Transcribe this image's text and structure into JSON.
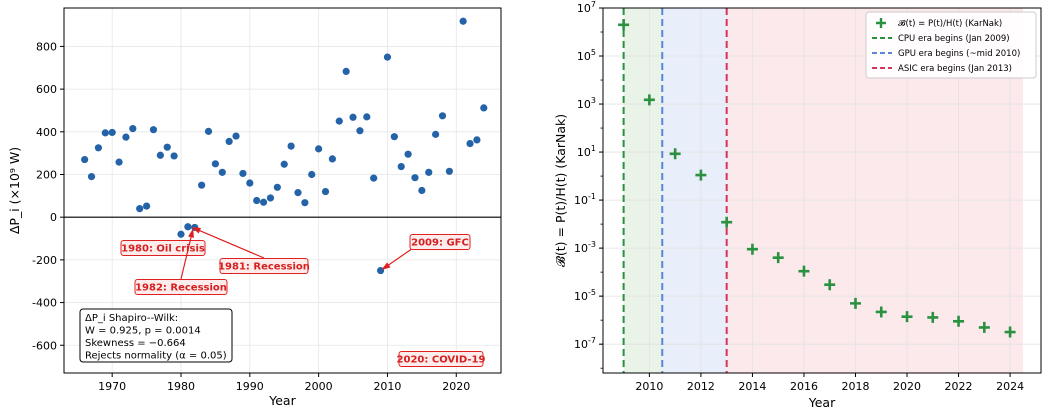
{
  "chart_data": [
    {
      "type": "scatter",
      "xlabel": "Year",
      "ylabel": "ΔP_i (×10⁹ W)",
      "xlim": [
        1963,
        2026.5
      ],
      "ylim": [
        -730,
        980
      ],
      "xticks": [
        1970,
        1980,
        1990,
        2000,
        2010,
        2020
      ],
      "yticks": [
        -600,
        -400,
        -200,
        0,
        200,
        400,
        600,
        800
      ],
      "grid": true,
      "marker_color": "#2463a8",
      "zero_line": true,
      "points": [
        [
          1966,
          270
        ],
        [
          1967,
          190
        ],
        [
          1968,
          325
        ],
        [
          1969,
          395
        ],
        [
          1970,
          397
        ],
        [
          1971,
          258
        ],
        [
          1972,
          375
        ],
        [
          1973,
          415
        ],
        [
          1974,
          40
        ],
        [
          1975,
          52
        ],
        [
          1976,
          410
        ],
        [
          1977,
          290
        ],
        [
          1978,
          328
        ],
        [
          1979,
          287
        ],
        [
          1980,
          -80
        ],
        [
          1981,
          -45
        ],
        [
          1982,
          -48
        ],
        [
          1983,
          150
        ],
        [
          1984,
          402
        ],
        [
          1985,
          250
        ],
        [
          1986,
          210
        ],
        [
          1987,
          355
        ],
        [
          1988,
          380
        ],
        [
          1989,
          205
        ],
        [
          1990,
          160
        ],
        [
          1991,
          78
        ],
        [
          1992,
          70
        ],
        [
          1993,
          90
        ],
        [
          1994,
          140
        ],
        [
          1995,
          248
        ],
        [
          1996,
          333
        ],
        [
          1997,
          115
        ],
        [
          1998,
          68
        ],
        [
          1999,
          200
        ],
        [
          2000,
          320
        ],
        [
          2001,
          120
        ],
        [
          2002,
          273
        ],
        [
          2003,
          450
        ],
        [
          2004,
          683
        ],
        [
          2005,
          468
        ],
        [
          2006,
          405
        ],
        [
          2007,
          470
        ],
        [
          2008,
          183
        ],
        [
          2009,
          -250
        ],
        [
          2010,
          750
        ],
        [
          2011,
          377
        ],
        [
          2012,
          237
        ],
        [
          2013,
          295
        ],
        [
          2014,
          185
        ],
        [
          2015,
          125
        ],
        [
          2016,
          210
        ],
        [
          2017,
          388
        ],
        [
          2018,
          475
        ],
        [
          2019,
          215
        ],
        [
          2020,
          -650
        ],
        [
          2021,
          918
        ],
        [
          2022,
          345
        ],
        [
          2023,
          362
        ],
        [
          2024,
          512
        ]
      ],
      "annotations": [
        {
          "text": "1980: Oil crisis",
          "point": [
            1980,
            -80
          ],
          "arrow": false
        },
        {
          "text": "1981: Recession",
          "point": [
            1981.4,
            -45
          ],
          "arrow": true
        },
        {
          "text": "1982: Recession",
          "point": [
            1981.8,
            -48
          ],
          "arrow": true
        },
        {
          "text": "2009: GFC",
          "point": [
            2009,
            -250
          ],
          "arrow": true
        },
        {
          "text": "2020: COVID-19",
          "point": [
            2020,
            -650
          ],
          "arrow": false
        }
      ],
      "stats_box": [
        "ΔP_i  Shapiro--Wilk:",
        "W = 0.925,  p = 0.0014",
        "Skewness = −0.664",
        "Rejects normality (α = 0.05)"
      ]
    },
    {
      "type": "scatter",
      "scale_y": "log",
      "xlabel": "Year",
      "ylabel": "𝓑(t) = P(t)/H(t) (KarNak)",
      "xlim": [
        2008.2,
        2025.2
      ],
      "ylim_exp": [
        -8.2,
        7
      ],
      "xticks": [
        2010,
        2012,
        2014,
        2016,
        2018,
        2020,
        2022,
        2024
      ],
      "ytick_exps": [
        -7,
        -5,
        -3,
        -1,
        1,
        3,
        5,
        7
      ],
      "grid": true,
      "marker": "plus",
      "marker_color": "#2a9140",
      "points": [
        [
          2009,
          2000000
        ],
        [
          2010,
          1500
        ],
        [
          2011,
          8.5
        ],
        [
          2012,
          1.1
        ],
        [
          2013,
          0.012
        ],
        [
          2014,
          0.0009
        ],
        [
          2015,
          0.0004
        ],
        [
          2016,
          0.00011
        ],
        [
          2017,
          3e-05
        ],
        [
          2018,
          5e-06
        ],
        [
          2019,
          2.2e-06
        ],
        [
          2020,
          1.4e-06
        ],
        [
          2021,
          1.3e-06
        ],
        [
          2022,
          9e-07
        ],
        [
          2023,
          5e-07
        ],
        [
          2024,
          3.2e-07
        ]
      ],
      "eras": [
        {
          "start": 2009,
          "end": 2010.5,
          "fill": "#e9f3e7",
          "line": "#2a9140"
        },
        {
          "start": 2010.5,
          "end": 2013,
          "fill": "#e9eefb",
          "line": "#5b84dd"
        },
        {
          "start": 2013,
          "end": 2024.5,
          "fill": "#fce9ec",
          "line": "#d6335a"
        }
      ],
      "legend_position": "top-right",
      "legend": [
        {
          "label": "𝓑(t) = P(t)/H(t)  (KarNak)",
          "kind": "plus",
          "color": "#2a9140"
        },
        {
          "label": "CPU era begins (Jan 2009)",
          "kind": "dash",
          "color": "#2a9140"
        },
        {
          "label": "GPU era begins (~mid 2010)",
          "kind": "dash",
          "color": "#5b84dd"
        },
        {
          "label": "ASIC era begins (Jan 2013)",
          "kind": "dash",
          "color": "#d6335a"
        }
      ]
    }
  ]
}
